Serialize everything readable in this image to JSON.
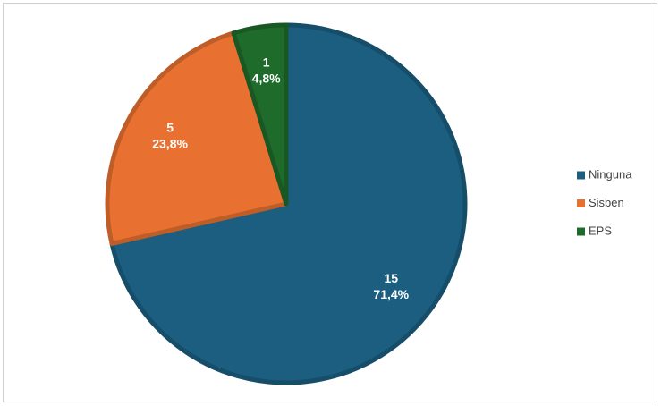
{
  "chart_data": {
    "type": "pie",
    "categories": [
      "Ninguna",
      "Sisben",
      "EPS"
    ],
    "values": [
      15,
      5,
      1
    ],
    "percent_values": [
      71.4,
      23.8,
      4.8
    ],
    "percent_labels": [
      "71,4%",
      "23,8%",
      "4,8%"
    ],
    "colors": [
      "#1b5e80",
      "#e87131",
      "#1f6b2b"
    ],
    "legend": "right"
  }
}
